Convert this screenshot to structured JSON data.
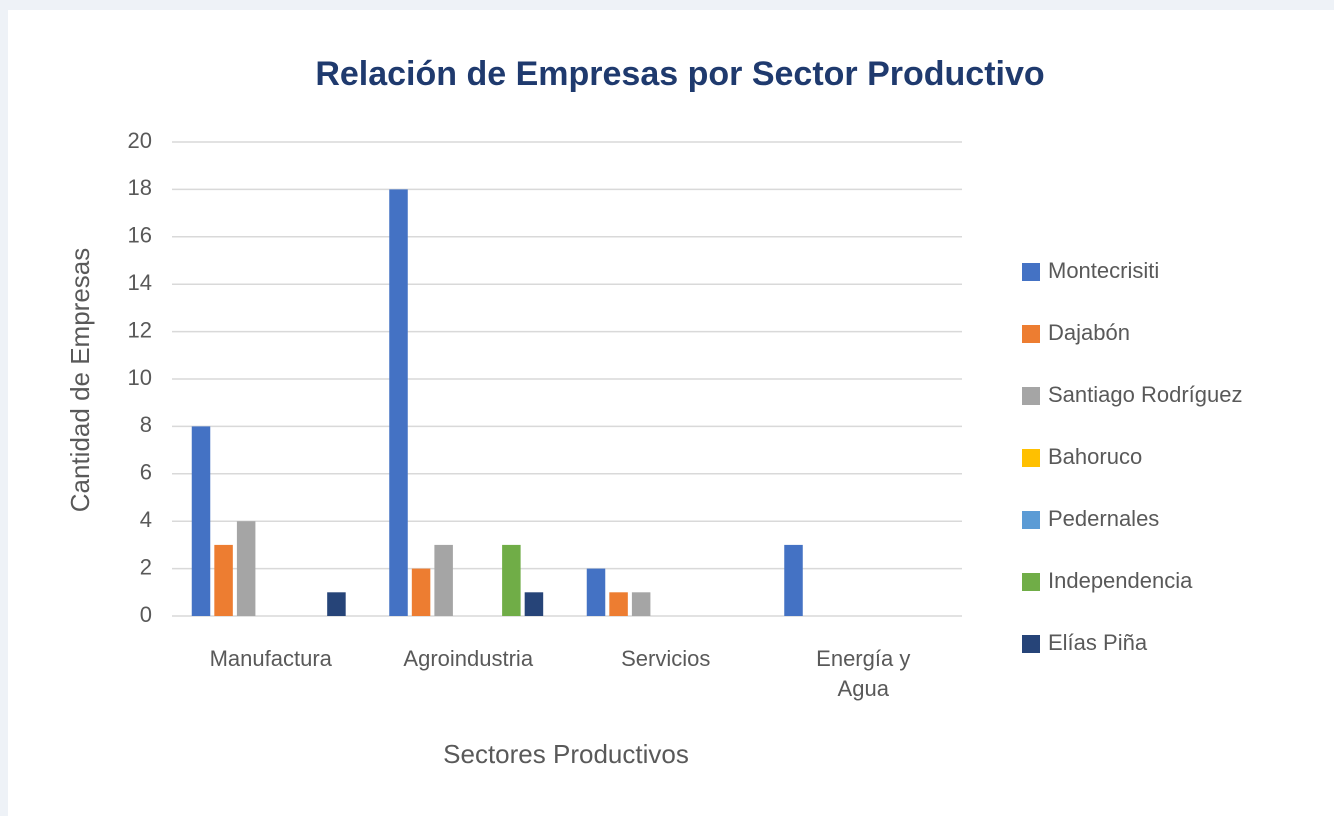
{
  "chart_data": {
    "type": "bar",
    "title": "Relación de Empresas por Sector Productivo",
    "x_label": "Sectores Productivos",
    "y_label": "Cantidad de Empresas",
    "categories": [
      "Manufactura",
      "Agroindustria",
      "Servicios",
      "Energía y Agua"
    ],
    "series": [
      {
        "name": "Montecrisiti",
        "color": "#4472c4",
        "values": [
          8,
          18,
          2,
          3
        ]
      },
      {
        "name": "Dajabón",
        "color": "#ed7d31",
        "values": [
          3,
          2,
          1,
          0
        ]
      },
      {
        "name": "Santiago Rodríguez",
        "color": "#a5a5a5",
        "values": [
          4,
          3,
          1,
          0
        ]
      },
      {
        "name": "Bahoruco",
        "color": "#ffc000",
        "values": [
          0,
          0,
          0,
          0
        ]
      },
      {
        "name": "Pedernales",
        "color": "#5b9bd5",
        "values": [
          0,
          0,
          0,
          0
        ]
      },
      {
        "name": "Independencia",
        "color": "#70ad47",
        "values": [
          0,
          3,
          0,
          0
        ]
      },
      {
        "name": "Elías Piña",
        "color": "#264478",
        "values": [
          1,
          1,
          0,
          0
        ]
      }
    ],
    "ylim": [
      0,
      20
    ],
    "yticks": [
      0,
      2,
      4,
      6,
      8,
      10,
      12,
      14,
      16,
      18,
      20
    ],
    "grid": true,
    "legend": "right"
  }
}
